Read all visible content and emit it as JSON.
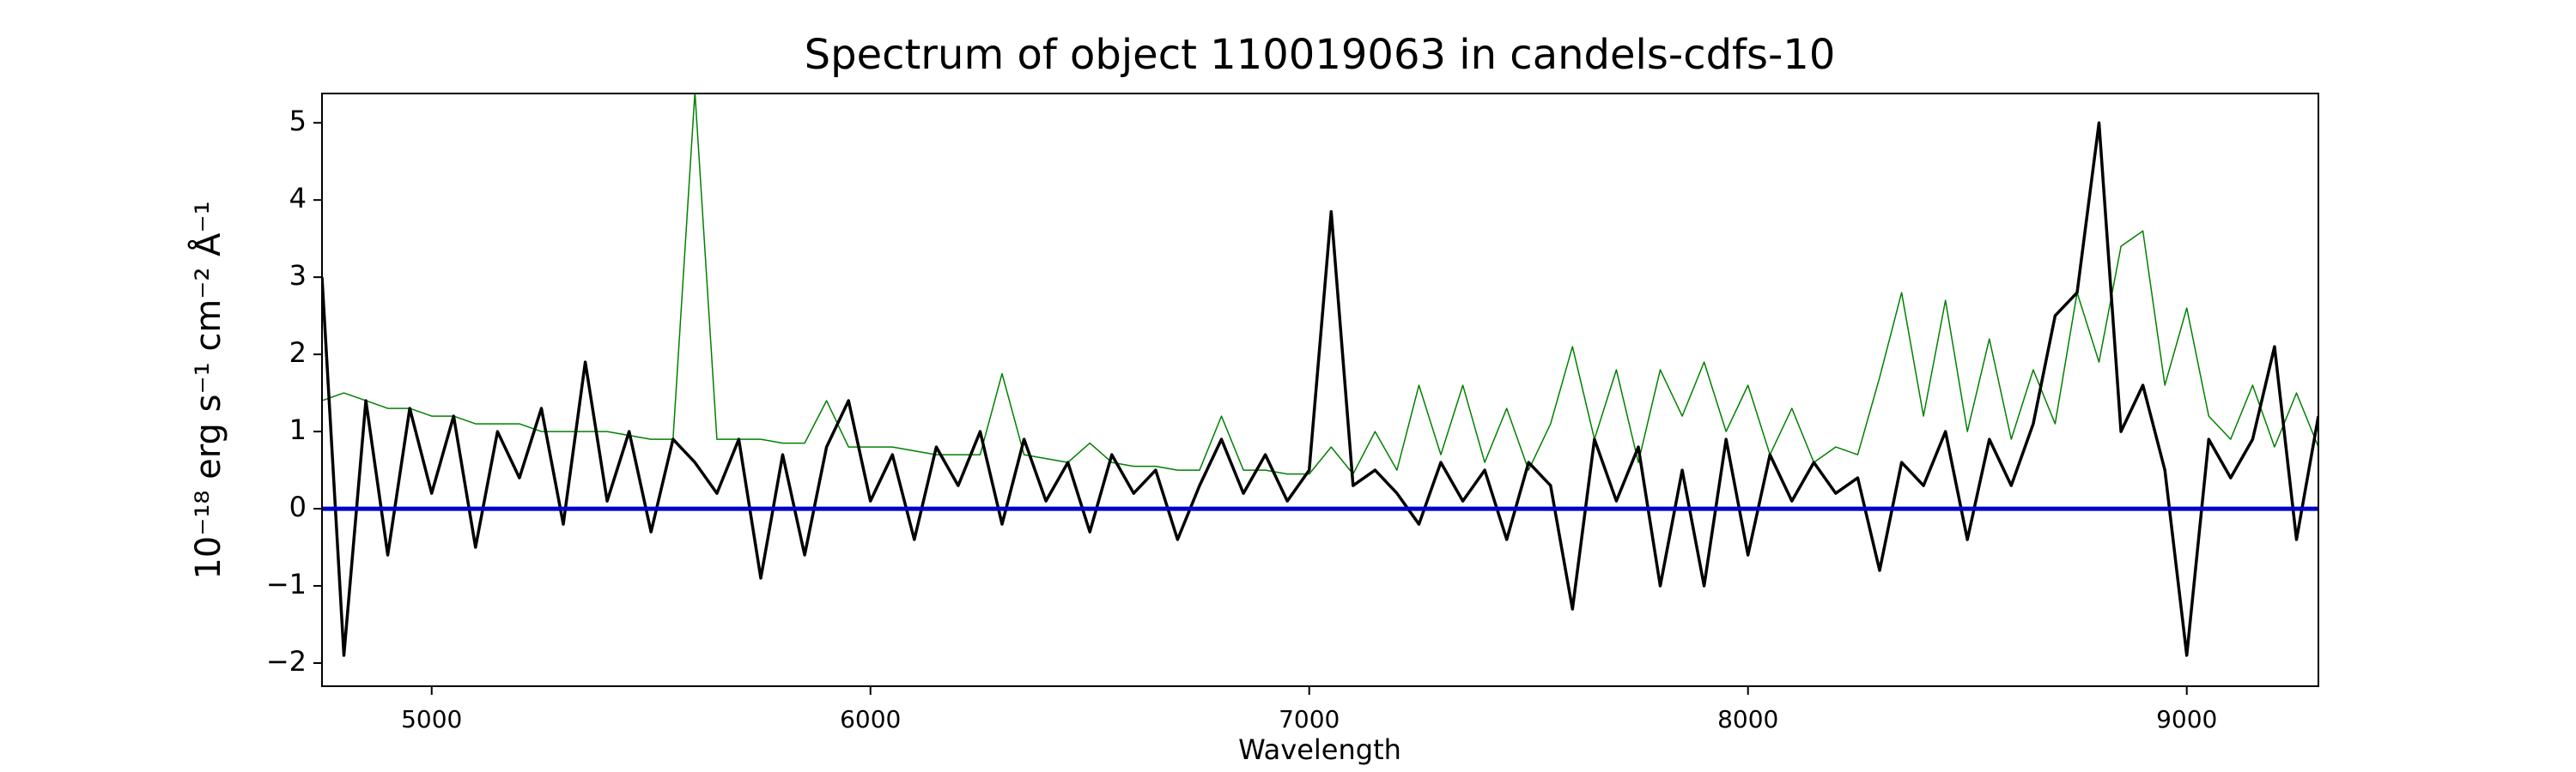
{
  "chart_data": {
    "type": "line",
    "title": "Spectrum of object 110019063 in candels-cdfs-10",
    "x_label": "Wavelength",
    "y_label": "10⁻¹⁸ erg s⁻¹ cm⁻² Å⁻¹",
    "x": [
      4750,
      4800,
      4850,
      4900,
      4950,
      5000,
      5050,
      5100,
      5150,
      5200,
      5250,
      5300,
      5350,
      5400,
      5450,
      5500,
      5550,
      5600,
      5650,
      5700,
      5750,
      5800,
      5850,
      5900,
      5950,
      6000,
      6050,
      6100,
      6150,
      6200,
      6250,
      6300,
      6350,
      6400,
      6450,
      6500,
      6550,
      6600,
      6650,
      6700,
      6750,
      6800,
      6850,
      6900,
      6950,
      7000,
      7050,
      7100,
      7150,
      7200,
      7250,
      7300,
      7350,
      7400,
      7450,
      7500,
      7550,
      7600,
      7650,
      7700,
      7750,
      7800,
      7850,
      7900,
      7950,
      8000,
      8050,
      8100,
      8150,
      8200,
      8250,
      8300,
      8350,
      8400,
      8450,
      8500,
      8550,
      8600,
      8650,
      8700,
      8750,
      8800,
      8850,
      8900,
      8950,
      9000,
      9050,
      9100,
      9150,
      9200,
      9250,
      9300
    ],
    "series": [
      {
        "color": "#008000",
        "width": 1.5,
        "values": [
          1.4,
          1.5,
          1.4,
          1.3,
          1.3,
          1.2,
          1.2,
          1.1,
          1.1,
          1.1,
          1.0,
          1.0,
          1.0,
          1.0,
          0.95,
          0.9,
          0.9,
          5.4,
          0.9,
          0.9,
          0.9,
          0.85,
          0.85,
          1.4,
          0.8,
          0.8,
          0.8,
          0.75,
          0.7,
          0.7,
          0.7,
          1.75,
          0.7,
          0.65,
          0.6,
          0.85,
          0.6,
          0.55,
          0.55,
          0.5,
          0.5,
          1.2,
          0.5,
          0.5,
          0.45,
          0.45,
          0.8,
          0.45,
          1.0,
          0.5,
          1.6,
          0.7,
          1.6,
          0.6,
          1.3,
          0.5,
          1.1,
          2.1,
          0.9,
          1.8,
          0.6,
          1.8,
          1.2,
          1.9,
          1.0,
          1.6,
          0.7,
          1.3,
          0.6,
          0.8,
          0.7,
          1.7,
          2.8,
          1.2,
          2.7,
          1.0,
          2.2,
          0.9,
          1.8,
          1.1,
          2.8,
          1.9,
          3.4,
          3.6,
          1.6,
          2.6,
          1.2,
          0.9,
          1.6,
          0.8,
          1.5,
          0.8
        ]
      },
      {
        "color": "#000000",
        "width": 3.5,
        "values": [
          3.0,
          -1.9,
          1.4,
          -0.6,
          1.3,
          0.2,
          1.2,
          -0.5,
          1.0,
          0.4,
          1.3,
          -0.2,
          1.9,
          0.1,
          1.0,
          -0.3,
          0.9,
          0.6,
          0.2,
          0.9,
          -0.9,
          0.7,
          -0.6,
          0.8,
          1.4,
          0.1,
          0.7,
          -0.4,
          0.8,
          0.3,
          1.0,
          -0.2,
          0.9,
          0.1,
          0.6,
          -0.3,
          0.7,
          0.2,
          0.5,
          -0.4,
          0.3,
          0.9,
          0.2,
          0.7,
          0.1,
          0.5,
          3.85,
          0.3,
          0.5,
          0.2,
          -0.2,
          0.6,
          0.1,
          0.5,
          -0.4,
          0.6,
          0.3,
          -1.3,
          0.9,
          0.1,
          0.8,
          -1.0,
          0.5,
          -1.0,
          0.9,
          -0.6,
          0.7,
          0.1,
          0.6,
          0.2,
          0.4,
          -0.8,
          0.6,
          0.3,
          1.0,
          -0.4,
          0.9,
          0.3,
          1.1,
          2.5,
          2.8,
          5.0,
          1.0,
          1.6,
          0.5,
          -1.9,
          0.9,
          0.4,
          0.9,
          2.1,
          -0.4,
          1.2
        ]
      },
      {
        "color": "#0000cc",
        "width": 5,
        "x": [
          4750,
          9300
        ],
        "values": [
          0,
          0
        ]
      }
    ],
    "xlim": [
      4750,
      9300
    ],
    "ylim": [
      -2.3,
      5.38
    ],
    "xticks": [
      5000,
      6000,
      7000,
      8000,
      9000
    ],
    "yticks": [
      {
        "value": -2,
        "label": "−2"
      },
      {
        "value": -1,
        "label": "−1"
      },
      0,
      1,
      2,
      3,
      4,
      5
    ]
  }
}
